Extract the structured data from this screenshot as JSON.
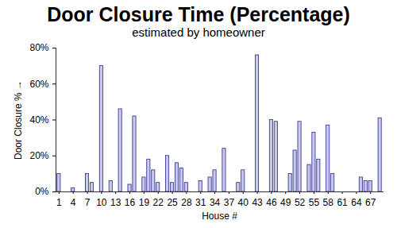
{
  "chart_data": {
    "type": "bar",
    "title": "Door Closure Time (Percentage)",
    "subtitle": "estimated by homeowner",
    "x_label": "House #",
    "y_label": "Door Closure %",
    "categories": [
      "1",
      null,
      null,
      "4",
      null,
      null,
      "7",
      null,
      null,
      "10",
      null,
      null,
      "13",
      null,
      null,
      "16",
      null,
      null,
      "19",
      null,
      null,
      "22",
      null,
      null,
      "25",
      null,
      null,
      "28",
      null,
      null,
      "31",
      null,
      null,
      "34",
      null,
      null,
      "37",
      null,
      null,
      "40",
      null,
      null,
      "43",
      null,
      null,
      "46",
      null,
      null,
      "49",
      null,
      null,
      "52",
      null,
      null,
      "55",
      null,
      null,
      "58",
      null,
      null,
      "61",
      null,
      null,
      "64",
      null,
      null,
      "67",
      null,
      null
    ],
    "values": [
      10,
      0,
      0,
      2,
      0,
      0,
      10,
      5,
      0,
      70,
      0,
      6,
      0,
      46,
      0,
      4,
      42,
      0,
      8,
      18,
      12,
      5,
      0,
      20,
      5,
      16,
      13,
      5,
      0,
      0,
      6,
      0,
      8,
      12,
      0,
      24,
      0,
      0,
      5,
      12,
      0,
      0,
      76,
      0,
      0,
      40,
      39,
      0,
      0,
      10,
      23,
      39,
      0,
      15,
      33,
      18,
      0,
      37,
      10,
      0,
      0,
      0,
      0,
      0,
      8,
      6,
      6,
      0,
      41
    ],
    "color": "#c8c8f4",
    "ylim": [
      0,
      80
    ],
    "yticks": [
      {
        "value": 0,
        "label": "0%"
      },
      {
        "value": 20,
        "label": "20%"
      },
      {
        "value": 40,
        "label": "40%"
      },
      {
        "value": 60,
        "label": "60%"
      },
      {
        "value": 80,
        "label": "80%"
      }
    ],
    "grid": false
  }
}
